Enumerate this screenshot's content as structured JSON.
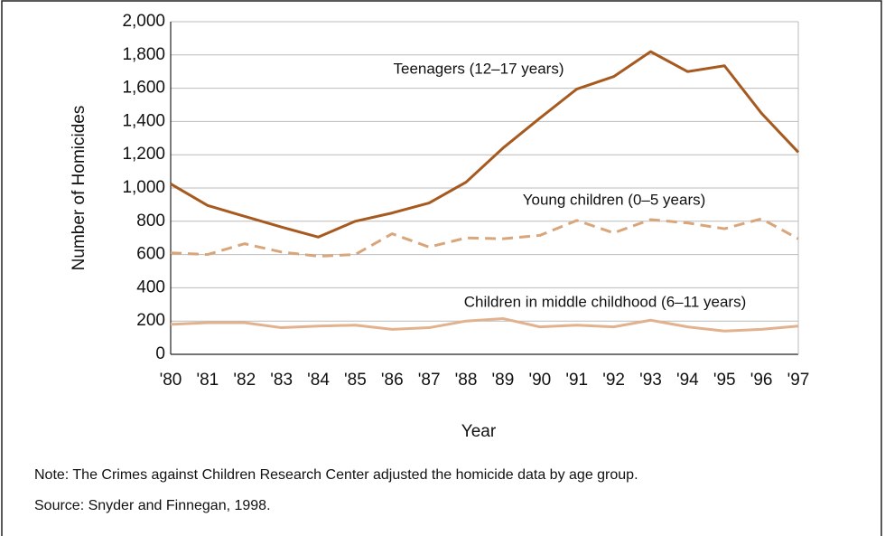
{
  "chart_data": {
    "type": "line",
    "y_label": "Number of Homicides",
    "x_label": "Year",
    "categories": [
      "'80",
      "'81",
      "'82",
      "'83",
      "'84",
      "'85",
      "'86",
      "'87",
      "'88",
      "'89",
      "'90",
      "'91",
      "'92",
      "'93",
      "'94",
      "'95",
      "'96",
      "'97"
    ],
    "series": [
      {
        "name": "Teenagers (12–17 years)",
        "color": "#a65a20",
        "dash": false,
        "values": [
          1025,
          895,
          830,
          765,
          705,
          800,
          850,
          910,
          1035,
          1240,
          1420,
          1595,
          1670,
          1820,
          1700,
          1735,
          1450,
          1215
        ]
      },
      {
        "name": "Young children (0–5 years)",
        "color": "#d9a57a",
        "dash": true,
        "values": [
          610,
          600,
          665,
          615,
          590,
          600,
          725,
          645,
          700,
          695,
          715,
          805,
          730,
          810,
          790,
          755,
          815,
          695
        ]
      },
      {
        "name": "Children in middle childhood (6–11 years)",
        "color": "#e2b28e",
        "dash": false,
        "values": [
          180,
          190,
          190,
          160,
          170,
          175,
          150,
          160,
          200,
          215,
          165,
          175,
          165,
          205,
          165,
          140,
          150,
          170
        ]
      }
    ],
    "ylim": [
      0,
      2000
    ],
    "yticks": [
      0,
      200,
      400,
      600,
      800,
      {
        "value": 1000,
        "label": "1,000"
      },
      {
        "value": 1200,
        "label": "1,200"
      },
      {
        "value": 1400,
        "label": "1,400"
      },
      {
        "value": 1600,
        "label": "1,600"
      },
      {
        "value": 1800,
        "label": "1,800"
      },
      {
        "value": 2000,
        "label": "2,000"
      }
    ],
    "grid": true,
    "notes": [
      "Note: The Crimes against Children Research Center adjusted the homicide data by age group.",
      "Source: Snyder and Finnegan, 1998."
    ]
  }
}
